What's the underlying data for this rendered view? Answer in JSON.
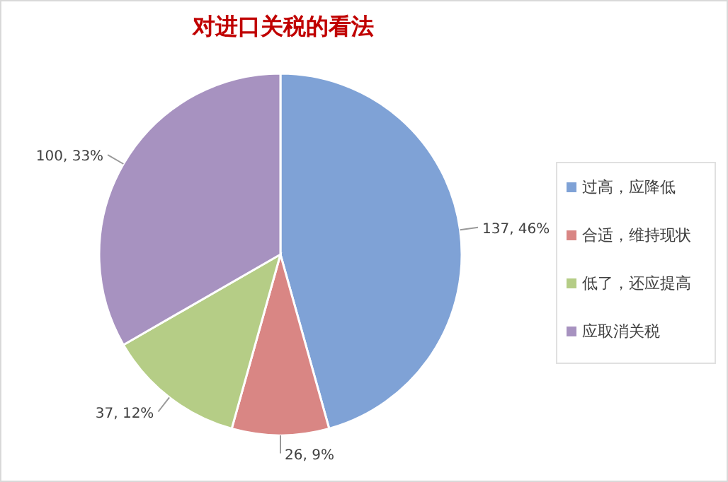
{
  "chart_data": {
    "type": "pie",
    "title": "对进口关税的看法",
    "categories": [
      "过高，应降低",
      "合适，维持现状",
      "低了，还应提高",
      "应取消关税"
    ],
    "values": [
      137,
      26,
      37,
      100
    ],
    "colors": [
      "#7fa2d6",
      "#d98684",
      "#b5cd86",
      "#a792c0"
    ],
    "value_labels": [
      "137, 46%",
      "26, 9%",
      "37, 12%",
      "100, 33%"
    ],
    "legend": "right"
  }
}
